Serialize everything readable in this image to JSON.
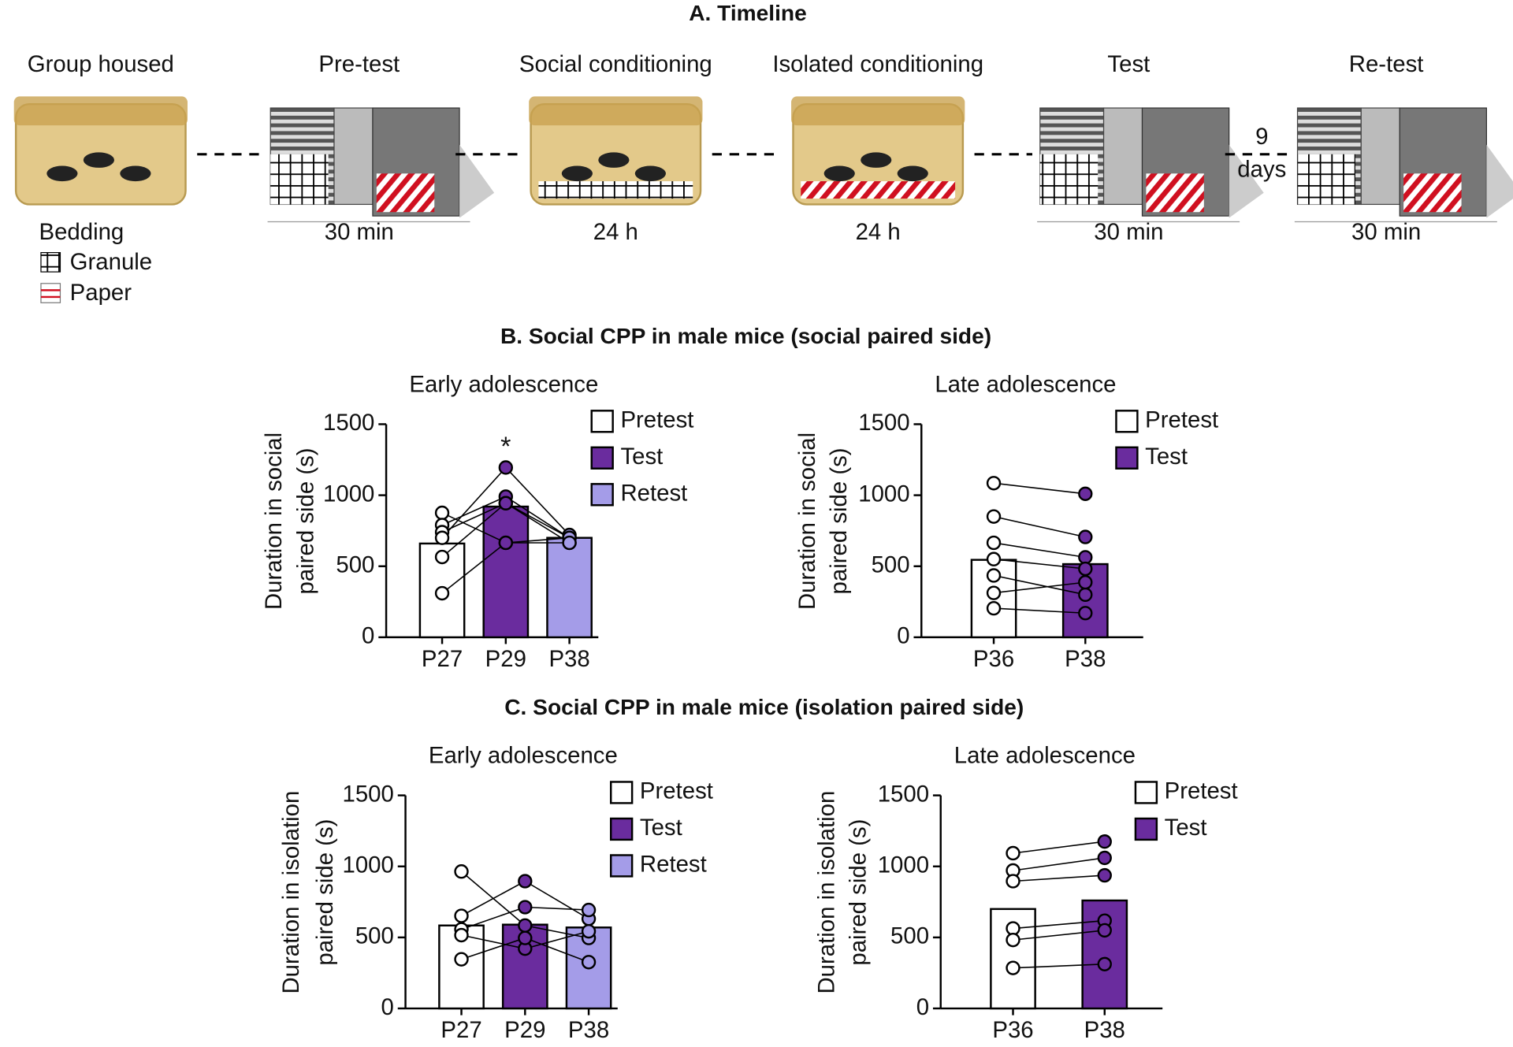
{
  "timeline": {
    "title": "A. Timeline",
    "stages": [
      {
        "label": "Group housed"
      },
      {
        "label": "Pre-test",
        "duration": "30 min"
      },
      {
        "label": "Social conditioning",
        "duration": "24 h"
      },
      {
        "label": "Isolated conditioning",
        "duration": "24 h"
      },
      {
        "label": "Test",
        "duration": "30 min"
      },
      {
        "label": "Re-test",
        "duration": "30 min"
      }
    ],
    "gap_label": [
      "9",
      "days"
    ],
    "legend": {
      "title": "Bedding",
      "items": [
        "Granule",
        "Paper"
      ]
    }
  },
  "sections": [
    {
      "title": "B. Social CPP in male mice (social paired side)"
    },
    {
      "title": "C. Social CPP in male mice (isolation paired side)"
    }
  ],
  "chart_data": [
    {
      "type": "bar",
      "title": "Early adolescence",
      "ylabel": [
        "Duration in social",
        "paired side (s)"
      ],
      "categories": [
        "P27",
        "P29",
        "P38"
      ],
      "legend": [
        "Pretest",
        "Test",
        "Retest"
      ],
      "colors": [
        "#ffffff",
        "#6a2c9e",
        "#a49ce8"
      ],
      "values": [
        660,
        920,
        700
      ],
      "subjects": [
        [
          876,
          665,
          700
        ],
        [
          790,
          990,
          700
        ],
        [
          740,
          944,
          665
        ],
        [
          700,
          1195,
          720
        ],
        [
          565,
          944,
          700
        ],
        [
          310,
          665,
          665
        ]
      ],
      "annotation": "*",
      "ylim": [
        0,
        1500
      ],
      "yticks": [
        0,
        500,
        1000,
        1500
      ]
    },
    {
      "type": "bar",
      "title": "Late adolescence",
      "ylabel": [
        "Duration in social",
        "paired side (s)"
      ],
      "categories": [
        "P36",
        "P38"
      ],
      "legend": [
        "Pretest",
        "Test"
      ],
      "colors": [
        "#ffffff",
        "#6a2c9e"
      ],
      "values": [
        545,
        515
      ],
      "subjects": [
        [
          1085,
          1010
        ],
        [
          850,
          706
        ],
        [
          665,
          563
        ],
        [
          550,
          482
        ],
        [
          435,
          300
        ],
        [
          312,
          387
        ],
        [
          204,
          170
        ]
      ],
      "ylim": [
        0,
        1500
      ],
      "yticks": [
        0,
        500,
        1000,
        1500
      ]
    },
    {
      "type": "bar",
      "title": "Early adolescence",
      "ylabel": [
        "Duration in isolation",
        "paired side (s)"
      ],
      "categories": [
        "P27",
        "P29",
        "P38"
      ],
      "legend": [
        "Pretest",
        "Test",
        "Retest"
      ],
      "colors": [
        "#ffffff",
        "#6a2c9e",
        "#a49ce8"
      ],
      "values": [
        584,
        590,
        570
      ],
      "subjects": [
        [
          964,
          584,
          496
        ],
        [
          652,
          896,
          631
        ],
        [
          557,
          713,
          693
        ],
        [
          516,
          421,
          543
        ],
        [
          346,
          496,
          326
        ]
      ],
      "ylim": [
        0,
        1500
      ],
      "yticks": [
        0,
        500,
        1000,
        1500
      ]
    },
    {
      "type": "bar",
      "title": "Late adolescence",
      "ylabel": [
        "Duration in isolation",
        "paired side (s)"
      ],
      "categories": [
        "P36",
        "P38"
      ],
      "legend": [
        "Pretest",
        "Test"
      ],
      "colors": [
        "#ffffff",
        "#6a2c9e"
      ],
      "values": [
        700,
        760
      ],
      "subjects": [
        [
          1093,
          1175
        ],
        [
          971,
          1060
        ],
        [
          896,
          937
        ],
        [
          563,
          618
        ],
        [
          482,
          550
        ],
        [
          285,
          312
        ]
      ],
      "ylim": [
        0,
        1500
      ],
      "yticks": [
        0,
        500,
        1000,
        1500
      ]
    }
  ]
}
